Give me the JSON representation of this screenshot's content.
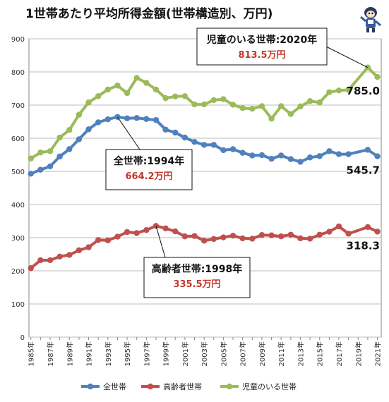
{
  "chart_data": {
    "type": "line",
    "title": "1世帯あたり平均所得金額(世帯構造別、万円)",
    "xlabel": "",
    "ylabel": "",
    "ylim": [
      0,
      900
    ],
    "yticks": [
      0,
      100,
      200,
      300,
      400,
      500,
      600,
      700,
      800,
      900
    ],
    "grid": true,
    "legend": "bottom",
    "x": [
      1985,
      1986,
      1987,
      1988,
      1989,
      1990,
      1991,
      1992,
      1993,
      1994,
      1995,
      1996,
      1997,
      1998,
      1999,
      2000,
      2001,
      2002,
      2003,
      2004,
      2005,
      2006,
      2007,
      2008,
      2009,
      2010,
      2011,
      2012,
      2013,
      2014,
      2015,
      2016,
      2017,
      2018,
      2019,
      2020,
      2021
    ],
    "xtick_labels": [
      "1985年",
      "1987年",
      "1989年",
      "1991年",
      "1993年",
      "1995年",
      "1997年",
      "1999年",
      "2001年",
      "2003年",
      "2005年",
      "2007年",
      "2009年",
      "2011年",
      "2013年",
      "2015年",
      "2017年",
      "2019年",
      "2021年"
    ],
    "series": [
      {
        "name": "全世帯",
        "color": "#4f81bd",
        "values": [
          493,
          505,
          515,
          545,
          567,
          597,
          627,
          648,
          657,
          664.2,
          660,
          661,
          658,
          655,
          626,
          617,
          602,
          589,
          580,
          580,
          564,
          567,
          556,
          548,
          549,
          538,
          548,
          537,
          529,
          542,
          546,
          561,
          552,
          552,
          null,
          565,
          545.7
        ],
        "end_label": "545.7"
      },
      {
        "name": "高齢者世帯",
        "color": "#c0504d",
        "values": [
          208,
          232,
          232,
          243,
          248,
          262,
          271,
          293,
          292,
          303,
          317,
          314,
          323,
          335.5,
          328,
          319,
          304,
          305,
          291,
          296,
          301,
          306,
          298,
          297,
          308,
          307,
          304,
          309,
          298,
          297,
          309,
          318,
          334,
          312,
          null,
          332,
          318.3
        ],
        "end_label": "318.3"
      },
      {
        "name": "児童のいる世帯",
        "color": "#9bbb59",
        "values": [
          539,
          557,
          561,
          602,
          625,
          671,
          708,
          727,
          747,
          759,
          736,
          782,
          767,
          747,
          721,
          726,
          727,
          702,
          702,
          715,
          718,
          701,
          691,
          689,
          697,
          659,
          697,
          673,
          696,
          712,
          708,
          739,
          744,
          746,
          null,
          813.5,
          785.0
        ],
        "end_label": "785.0"
      }
    ],
    "annotations": [
      {
        "line1": "児童のいる世帯:2020年",
        "line2": "813.5万円",
        "x": 2020,
        "y": 813.5
      },
      {
        "line1": "全世帯:1994年",
        "line2": "664.2万円",
        "x": 1994,
        "y": 664.2
      },
      {
        "line1": "高齢者世帯:1998年",
        "line2": "335.5万円",
        "x": 1998,
        "y": 335.5
      }
    ]
  }
}
